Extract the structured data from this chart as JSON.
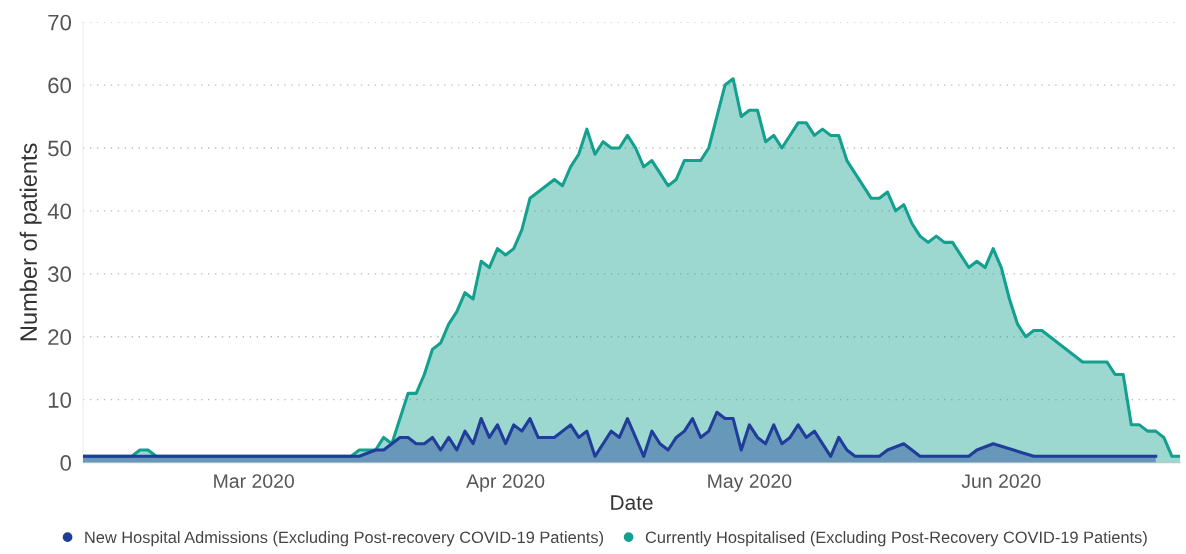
{
  "chart_data": {
    "type": "area",
    "xlabel": "Date",
    "ylabel": "Number of patients",
    "xlim": [
      "2020-02-09",
      "2020-06-23"
    ],
    "xticks": [
      {
        "value": "2020-03-01",
        "label": "Mar 2020"
      },
      {
        "value": "2020-04-01",
        "label": "Apr 2020"
      },
      {
        "value": "2020-05-01",
        "label": "May 2020"
      },
      {
        "value": "2020-06-01",
        "label": "Jun 2020"
      }
    ],
    "ylim": [
      0,
      70
    ],
    "yticks": [
      0,
      10,
      20,
      30,
      40,
      50,
      60,
      70
    ],
    "grid": "y",
    "legend": "bottom left",
    "marker": "none",
    "line_style": "solid",
    "series": [
      {
        "name": "New Hospital Admissions (Excluding Post-recovery COVID-19 Patients)",
        "color": "#1f3d99",
        "x": [
          "2020-02-09",
          "2020-03-13",
          "2020-03-14",
          "2020-03-16",
          "2020-03-17",
          "2020-03-18",
          "2020-03-19",
          "2020-03-20",
          "2020-03-21",
          "2020-03-22",
          "2020-03-23",
          "2020-03-24",
          "2020-03-25",
          "2020-03-26",
          "2020-03-27",
          "2020-03-28",
          "2020-03-29",
          "2020-03-30",
          "2020-03-31",
          "2020-04-01",
          "2020-04-02",
          "2020-04-03",
          "2020-04-04",
          "2020-04-05",
          "2020-04-07",
          "2020-04-09",
          "2020-04-10",
          "2020-04-11",
          "2020-04-12",
          "2020-04-13",
          "2020-04-14",
          "2020-04-15",
          "2020-04-16",
          "2020-04-17",
          "2020-04-18",
          "2020-04-19",
          "2020-04-20",
          "2020-04-21",
          "2020-04-22",
          "2020-04-23",
          "2020-04-24",
          "2020-04-25",
          "2020-04-26",
          "2020-04-27",
          "2020-04-28",
          "2020-04-29",
          "2020-04-30",
          "2020-05-01",
          "2020-05-02",
          "2020-05-03",
          "2020-05-04",
          "2020-05-05",
          "2020-05-06",
          "2020-05-07",
          "2020-05-08",
          "2020-05-09",
          "2020-05-11",
          "2020-05-12",
          "2020-05-13",
          "2020-05-14",
          "2020-05-17",
          "2020-05-18",
          "2020-05-20",
          "2020-05-22",
          "2020-05-28",
          "2020-05-29",
          "2020-05-31",
          "2020-06-05",
          "2020-06-20"
        ],
        "values": [
          1,
          1,
          1,
          2,
          2,
          3,
          4,
          4,
          3,
          3,
          4,
          2,
          4,
          2,
          5,
          3,
          7,
          4,
          6,
          3,
          6,
          5,
          7,
          4,
          4,
          6,
          4,
          5,
          1,
          3,
          5,
          4,
          7,
          4,
          1,
          5,
          3,
          2,
          4,
          5,
          7,
          4,
          5,
          8,
          7,
          7,
          2,
          6,
          4,
          3,
          6,
          3,
          4,
          6,
          4,
          5,
          1,
          4,
          2,
          1,
          1,
          2,
          3,
          1,
          1,
          2,
          3,
          1,
          1
        ]
      },
      {
        "name": "Currently Hospitalised (Excluding Post-Recovery COVID-19 Patients)",
        "color": "#13a08f",
        "x": [
          "2020-02-09",
          "2020-02-15",
          "2020-02-16",
          "2020-02-17",
          "2020-02-18",
          "2020-03-13",
          "2020-03-14",
          "2020-03-16",
          "2020-03-17",
          "2020-03-18",
          "2020-03-20",
          "2020-03-21",
          "2020-03-22",
          "2020-03-23",
          "2020-03-24",
          "2020-03-25",
          "2020-03-26",
          "2020-03-27",
          "2020-03-28",
          "2020-03-29",
          "2020-03-30",
          "2020-03-31",
          "2020-04-01",
          "2020-04-02",
          "2020-04-03",
          "2020-04-04",
          "2020-04-05",
          "2020-04-06",
          "2020-04-07",
          "2020-04-08",
          "2020-04-09",
          "2020-04-10",
          "2020-04-11",
          "2020-04-12",
          "2020-04-13",
          "2020-04-14",
          "2020-04-15",
          "2020-04-16",
          "2020-04-17",
          "2020-04-18",
          "2020-04-19",
          "2020-04-20",
          "2020-04-21",
          "2020-04-22",
          "2020-04-23",
          "2020-04-24",
          "2020-04-25",
          "2020-04-26",
          "2020-04-27",
          "2020-04-28",
          "2020-04-29",
          "2020-04-30",
          "2020-05-01",
          "2020-05-02",
          "2020-05-03",
          "2020-05-04",
          "2020-05-05",
          "2020-05-07",
          "2020-05-08",
          "2020-05-09",
          "2020-05-10",
          "2020-05-11",
          "2020-05-12",
          "2020-05-13",
          "2020-05-16",
          "2020-05-17",
          "2020-05-18",
          "2020-05-19",
          "2020-05-20",
          "2020-05-21",
          "2020-05-22",
          "2020-05-23",
          "2020-05-24",
          "2020-05-25",
          "2020-05-26",
          "2020-05-28",
          "2020-05-29",
          "2020-05-30",
          "2020-05-31",
          "2020-06-01",
          "2020-06-02",
          "2020-06-03",
          "2020-06-04",
          "2020-06-05",
          "2020-06-06",
          "2020-06-11",
          "2020-06-14",
          "2020-06-15",
          "2020-06-16",
          "2020-06-17",
          "2020-06-18",
          "2020-06-19",
          "2020-06-20",
          "2020-06-21",
          "2020-06-22",
          "2020-06-23"
        ],
        "values": [
          1,
          1,
          2,
          2,
          1,
          1,
          2,
          2,
          4,
          3,
          11,
          11,
          14,
          18,
          19,
          22,
          24,
          27,
          26,
          32,
          31,
          34,
          33,
          34,
          37,
          42,
          43,
          44,
          45,
          44,
          47,
          49,
          53,
          49,
          51,
          50,
          50,
          52,
          50,
          47,
          48,
          46,
          44,
          45,
          48,
          48,
          48,
          50,
          55,
          60,
          61,
          55,
          56,
          56,
          51,
          52,
          50,
          54,
          54,
          52,
          53,
          52,
          52,
          48,
          42,
          42,
          43,
          40,
          41,
          38,
          36,
          35,
          36,
          35,
          35,
          31,
          32,
          31,
          34,
          31,
          26,
          22,
          20,
          21,
          21,
          16,
          16,
          14,
          14,
          6,
          6,
          5,
          5,
          4,
          1,
          1
        ]
      }
    ]
  }
}
